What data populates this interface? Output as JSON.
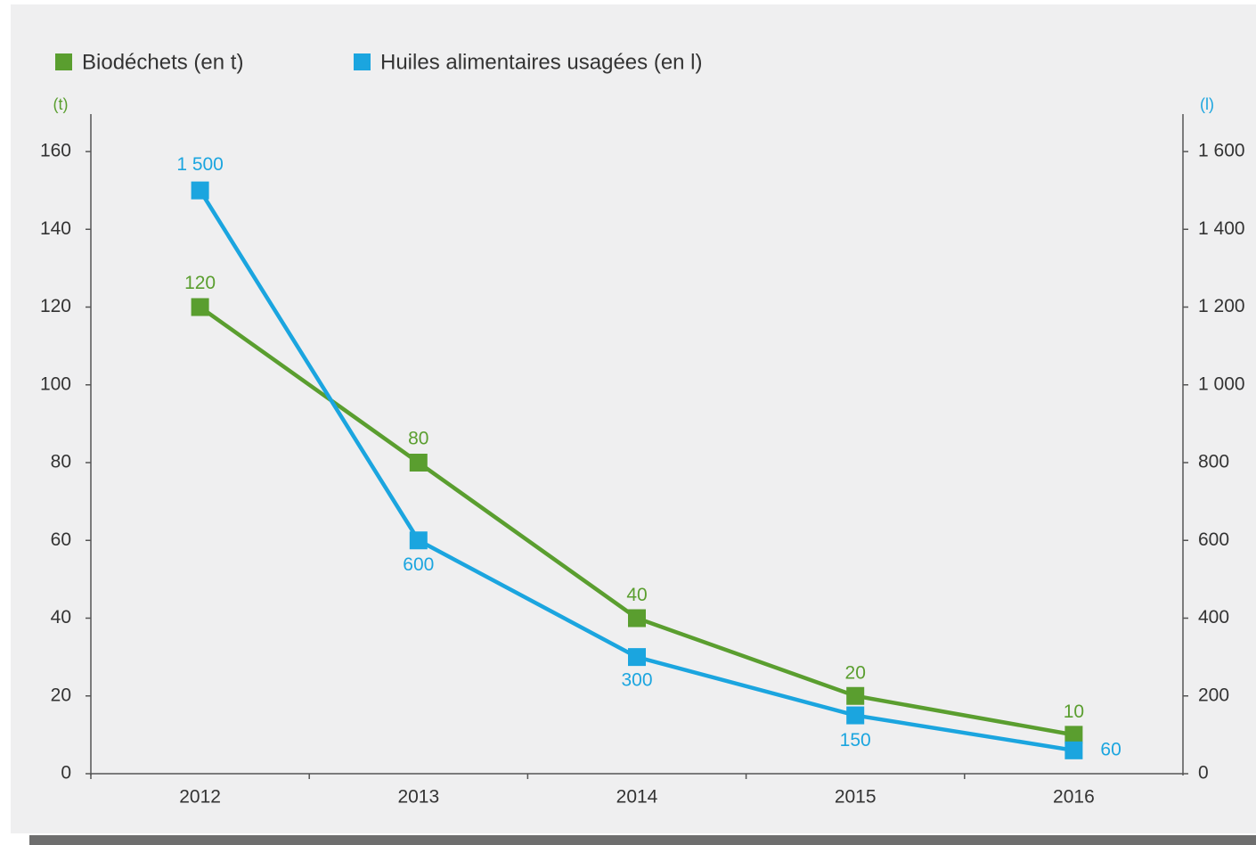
{
  "chart_data": {
    "type": "line",
    "categories": [
      "2012",
      "2013",
      "2014",
      "2015",
      "2016"
    ],
    "series": [
      {
        "name": "Biodéchets (en t)",
        "color": "#5a9e2f",
        "values": [
          120,
          80,
          40,
          20,
          10
        ]
      },
      {
        "name": "Huiles alimentaires usagées (en l)",
        "color": "#1ba5df",
        "axis": "y2",
        "values": [
          1500,
          600,
          300,
          150,
          60
        ],
        "value_labels": [
          "1 500",
          "600",
          "300",
          "150",
          "60"
        ]
      }
    ],
    "y_label": "(t)",
    "y2_label": "(l)",
    "ylim": [
      0,
      160
    ],
    "yticks": [
      0,
      20,
      40,
      60,
      80,
      100,
      120,
      140,
      160
    ],
    "y2lim": [
      0,
      1600
    ],
    "y2ticks": [
      0,
      200,
      400,
      600,
      800,
      {
        "value": 1000,
        "label": "1 000"
      },
      {
        "value": 1200,
        "label": "1 200"
      },
      {
        "value": 1400,
        "label": "1 400"
      },
      {
        "value": 1600,
        "label": "1 600"
      }
    ],
    "grid": false,
    "legend": "top"
  }
}
